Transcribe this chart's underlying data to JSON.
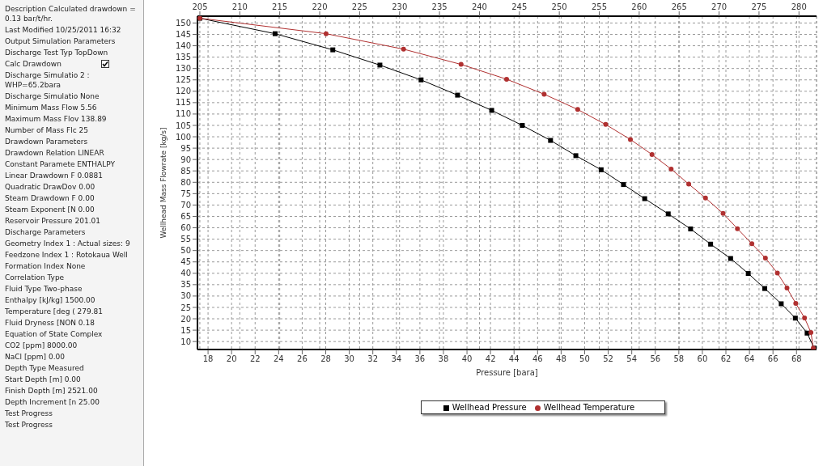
{
  "chart_data": [
    {
      "type": "other",
      "annotations": [
        "Description  Calculated drawdown = 0.13 bar/t/hr.",
        "Last Modified  10/25/2011 16:32",
        "Output Simulation Parameters",
        "Discharge Test Typ  TopDown",
        "Calc Drawdown",
        "Discharge Simulatio  2 : WHP=65.2bara",
        "Discharge Simulatio  None",
        "Minimum Mass Flow  5.56",
        "Maximum Mass Flov  138.89",
        "Number of Mass Flc  25",
        "Drawdown Parameters",
        "Drawdown Relation  LINEAR",
        "Constant Paramete  ENTHALPY",
        "Linear Drawdown F  0.0881",
        "Quadratic DrawDov  0.00",
        "Steam Drawdown F  0.00",
        "Steam Exponent [N  0.00",
        "Reservoir Pressure  201.01",
        "Discharge Parameters",
        "Geometry Index  1 : Actual sizes: 9",
        "Feedzone Index  1 : Rotokaua Well",
        "Formation Index  None",
        "Correlation Type",
        "Fluid Type  Two-phase",
        "Enthalpy [kJ/kg]  1500.00",
        "Temperature [deg (  279.81",
        "Fluid Dryness [NON  0.18",
        "Equation of State  Complex",
        "CO2 [ppm]  8000.00",
        "NaCl [ppm]  0.00",
        "Depth Type  Measured",
        "Start Depth [m]  0.00",
        "Finish Depth [m]  2521.00",
        "Depth Increment [n  25.00",
        "Test Progress",
        "Test Progress"
      ]
    },
    {
      "type": "line",
      "xlabel": "Pressure [bara]",
      "ylabel": "Wellhead Mass Flowrate [kg/s]",
      "xlim": [
        17.1,
        69.7
      ],
      "xticks": [
        18,
        20,
        22,
        24,
        26,
        28,
        30,
        32,
        34,
        36,
        38,
        40,
        42,
        44,
        46,
        48,
        50,
        52,
        54,
        56,
        58,
        60,
        62,
        64,
        66,
        68
      ],
      "x2lim": [
        204.7,
        282.2
      ],
      "x2ticks": [
        205,
        210,
        215,
        220,
        225,
        230,
        235,
        240,
        245,
        250,
        255,
        260,
        265,
        270,
        275,
        280
      ],
      "ylim": [
        6.5,
        153
      ],
      "yticks": [
        10,
        15,
        20,
        25,
        30,
        35,
        40,
        45,
        50,
        55,
        60,
        65,
        70,
        75,
        80,
        85,
        90,
        95,
        100,
        105,
        110,
        115,
        120,
        125,
        130,
        135,
        140,
        145,
        150
      ],
      "grid": true,
      "line_style": "solid",
      "legend": "bottom",
      "series": [
        {
          "name": "Wellhead Pressure",
          "color": "#000000",
          "marker": "square",
          "x": [
            17.3,
            23.7,
            28.6,
            32.6,
            36.1,
            39.2,
            42.1,
            44.7,
            47.1,
            49.25,
            51.4,
            53.3,
            55.1,
            57.1,
            59.0,
            60.7,
            62.4,
            63.9,
            65.3,
            66.7,
            67.9,
            68.9,
            69.5
          ],
          "values": [
            152.1,
            145.3,
            138.2,
            131.5,
            125,
            118.3,
            111.6,
            105,
            98.4,
            91.7,
            85.5,
            79,
            72.8,
            66.1,
            59.5,
            52.8,
            46.5,
            39.9,
            33.3,
            26.6,
            20.3,
            13.7,
            7.1
          ]
        },
        {
          "name": "Wellhead Temperature",
          "color": "#b03030",
          "marker": "circle",
          "axis": "x2",
          "x": [
            205.0,
            220.8,
            230.5,
            237.7,
            243.4,
            248.1,
            252.3,
            255.8,
            258.9,
            261.6,
            264.0,
            266.2,
            268.3,
            270.5,
            272.3,
            274.1,
            275.8,
            277.3,
            278.5,
            279.6,
            280.7,
            281.5,
            281.8
          ],
          "values": [
            152.1,
            145.3,
            138.5,
            131.8,
            125.3,
            118.7,
            112,
            105.4,
            98.8,
            92.2,
            85.8,
            79.2,
            73.1,
            66.3,
            59.6,
            53,
            46.7,
            40.1,
            33.5,
            26.8,
            20.4,
            14,
            7.1
          ]
        }
      ]
    }
  ]
}
